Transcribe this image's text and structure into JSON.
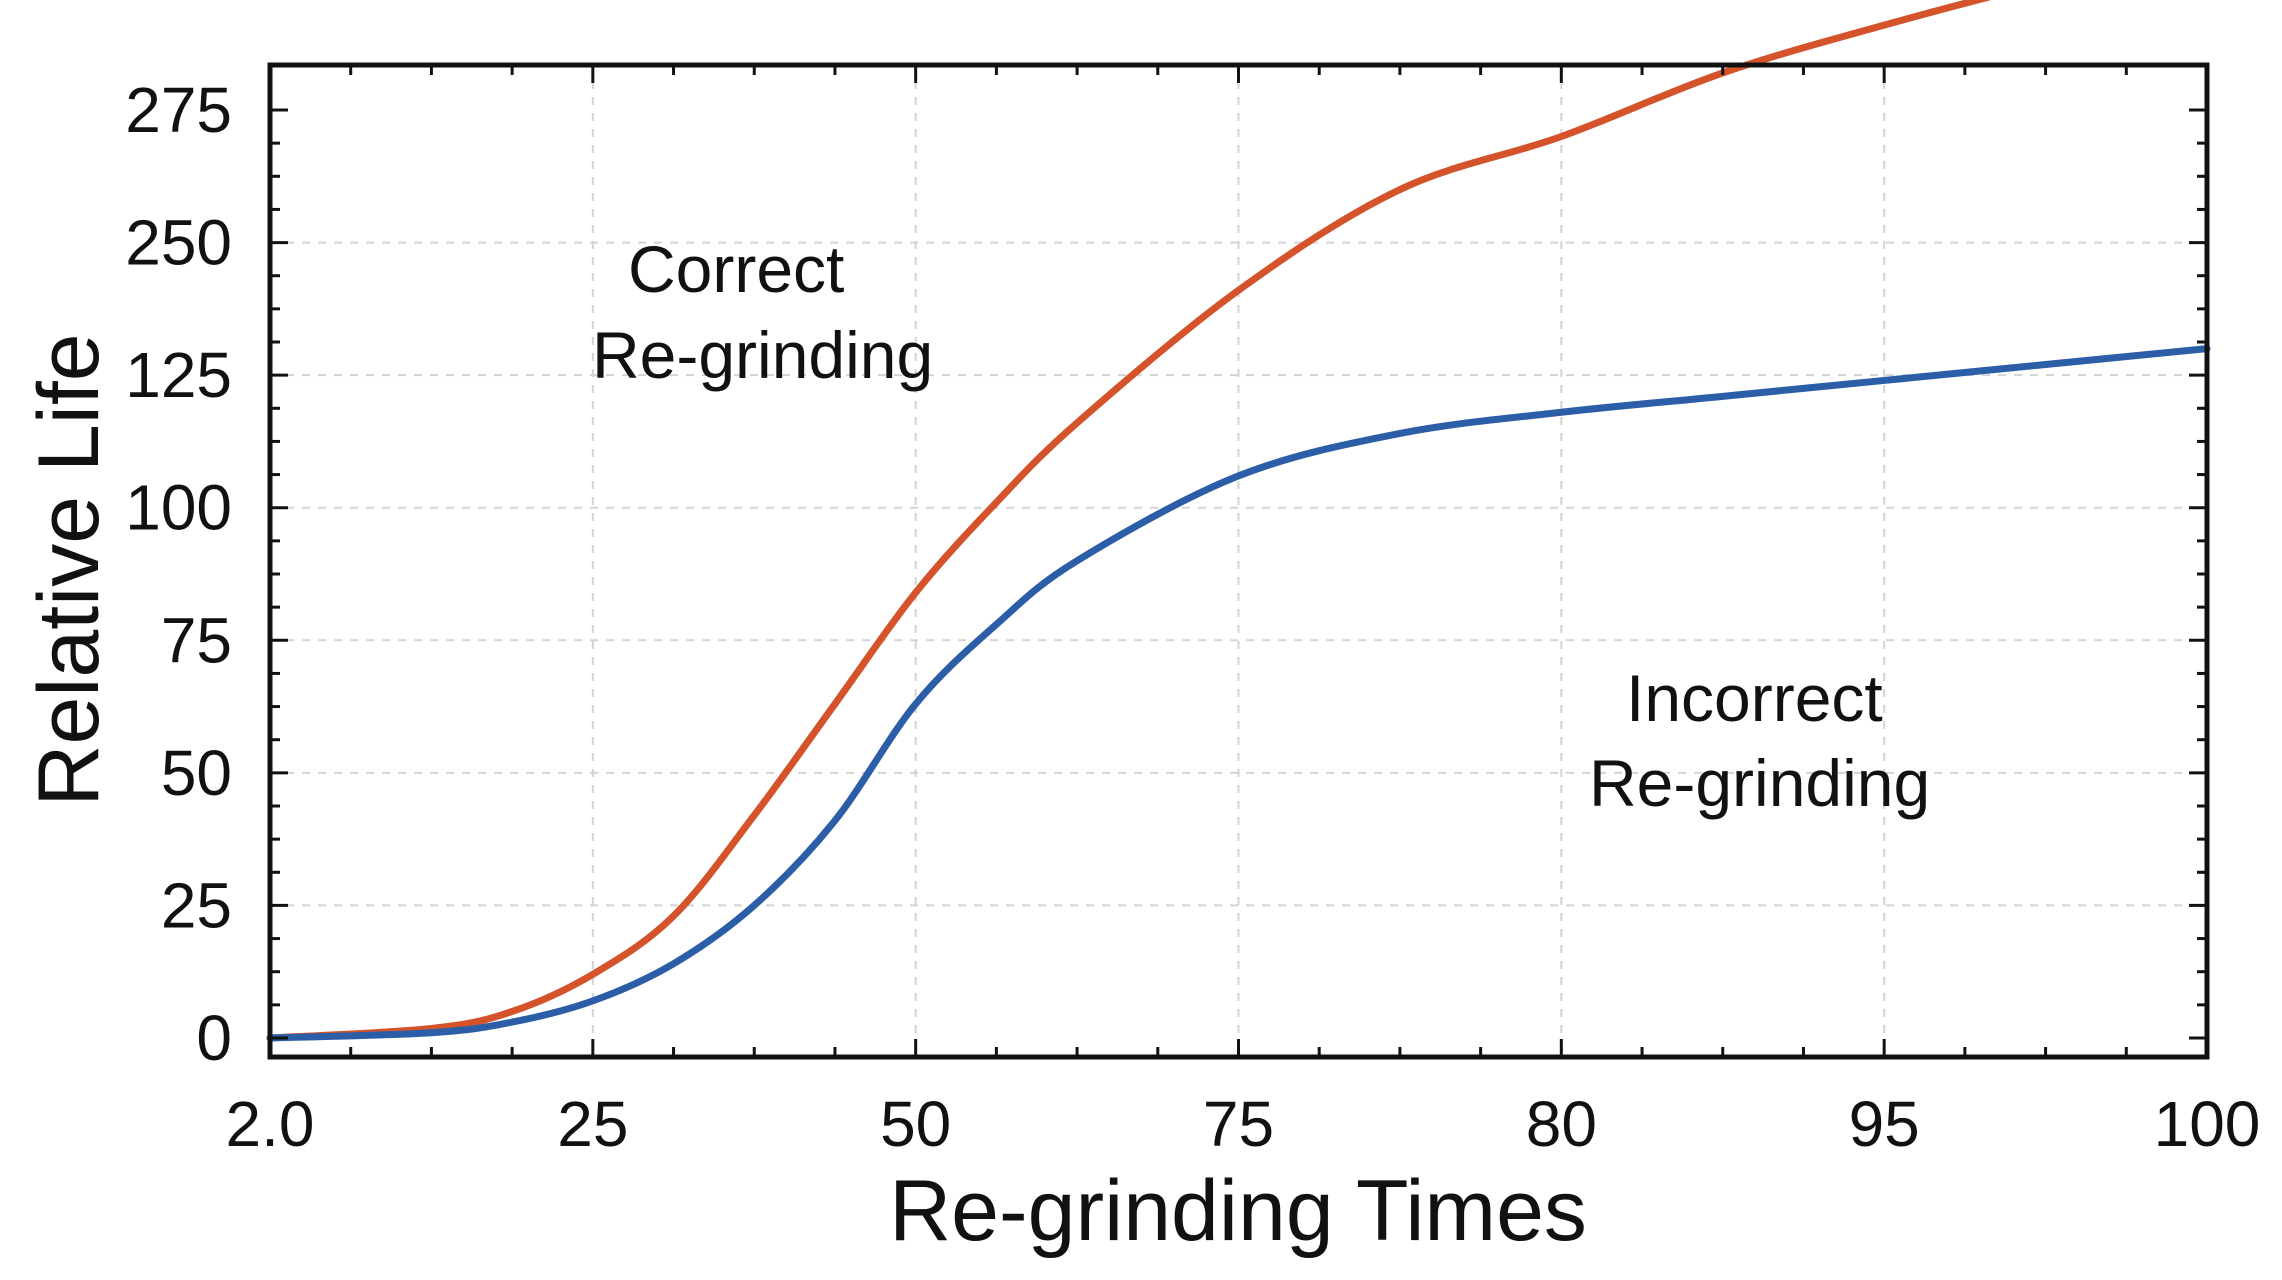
{
  "chart_data": {
    "type": "line",
    "title": "",
    "xlabel": "Re-grinding Times",
    "ylabel": "Relative Life",
    "x_tick_labels": [
      "2.0",
      "25",
      "50",
      "75",
      "80",
      "95",
      "100"
    ],
    "y_tick_labels": [
      "0",
      "25",
      "50",
      "75",
      "100",
      "125",
      "250",
      "275"
    ],
    "grid": true,
    "legend": "none",
    "series": [
      {
        "color": "#d4532b",
        "points": [
          {
            "x": 0.0,
            "y": 0
          },
          {
            "x": 0.5,
            "y": 1.8
          },
          {
            "x": 0.75,
            "y": 5
          },
          {
            "x": 1.0,
            "y": 12
          },
          {
            "x": 1.25,
            "y": 23
          },
          {
            "x": 1.5,
            "y": 42
          },
          {
            "x": 1.75,
            "y": 63
          },
          {
            "x": 2.0,
            "y": 84
          },
          {
            "x": 2.25,
            "y": 101
          },
          {
            "x": 2.5,
            "y": 116
          },
          {
            "x": 3.0,
            "y": 141
          },
          {
            "x": 3.5,
            "y": 160
          },
          {
            "x": 4.0,
            "y": 170
          },
          {
            "x": 4.5,
            "y": 182
          },
          {
            "x": 5.0,
            "y": 191
          },
          {
            "x": 5.5,
            "y": 199
          },
          {
            "x": 6.0,
            "y": 206
          }
        ]
      },
      {
        "color": "#2c5ea8",
        "points": [
          {
            "x": 0.0,
            "y": 0
          },
          {
            "x": 0.5,
            "y": 1
          },
          {
            "x": 0.75,
            "y": 3
          },
          {
            "x": 1.0,
            "y": 7
          },
          {
            "x": 1.25,
            "y": 14
          },
          {
            "x": 1.5,
            "y": 25
          },
          {
            "x": 1.75,
            "y": 41
          },
          {
            "x": 2.0,
            "y": 63
          },
          {
            "x": 2.25,
            "y": 78
          },
          {
            "x": 2.5,
            "y": 90
          },
          {
            "x": 3.0,
            "y": 106
          },
          {
            "x": 3.5,
            "y": 114
          },
          {
            "x": 4.0,
            "y": 118
          },
          {
            "x": 4.5,
            "y": 121
          },
          {
            "x": 5.0,
            "y": 124
          },
          {
            "x": 5.5,
            "y": 127
          },
          {
            "x": 6.0,
            "y": 130
          }
        ]
      }
    ],
    "annotations": [
      {
        "lines": [
          "Correct",
          "Re-grinding"
        ]
      },
      {
        "lines": [
          "Incorrect",
          "Re-grinding"
        ]
      }
    ]
  }
}
